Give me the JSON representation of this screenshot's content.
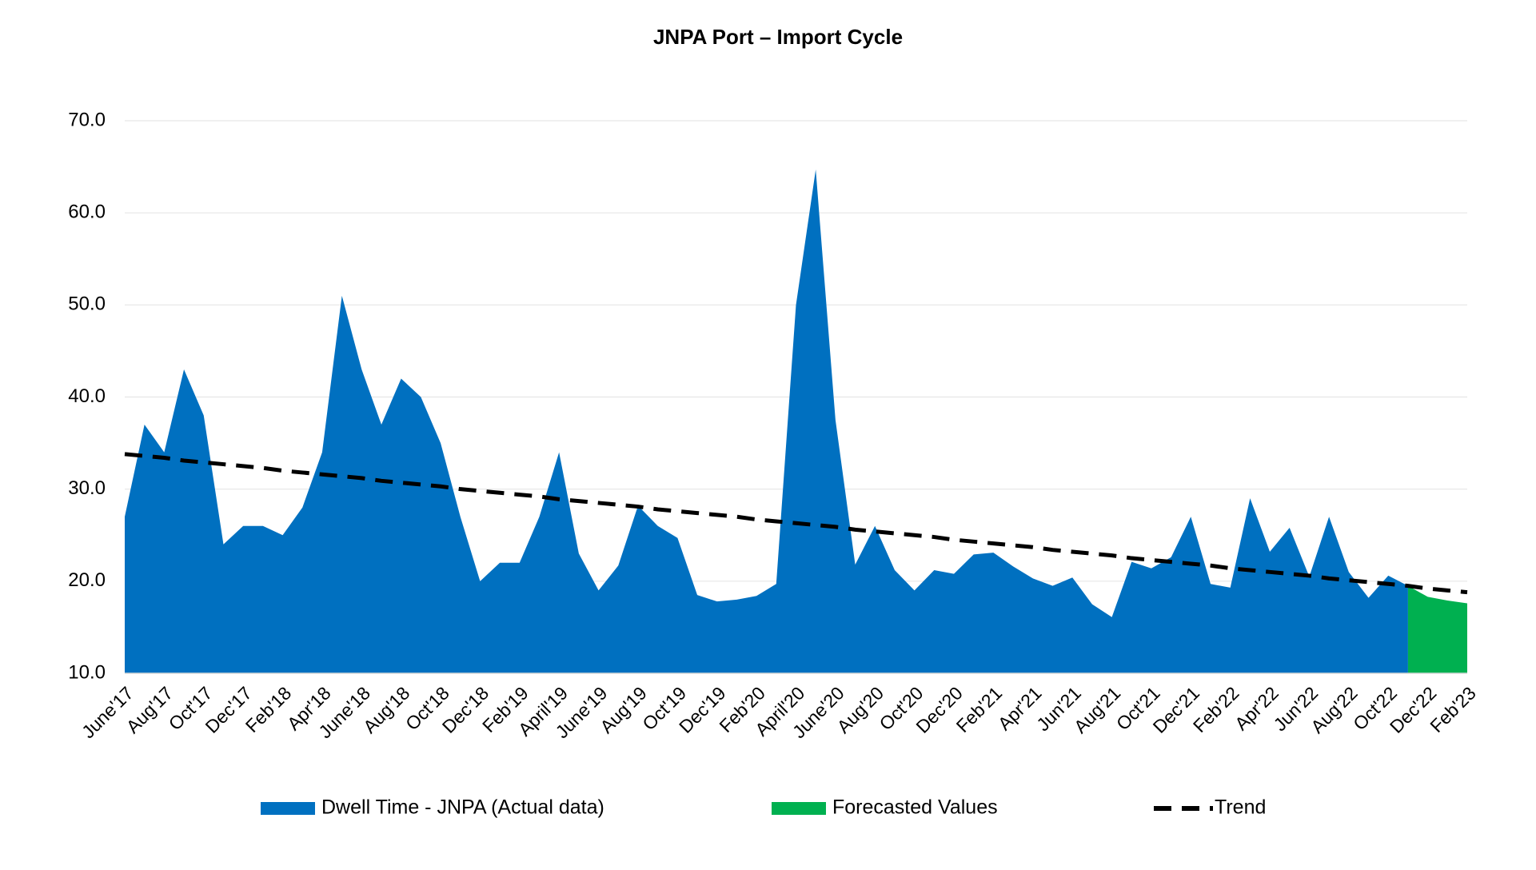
{
  "chart_data": {
    "type": "area",
    "title": "JNPA Port – Import Cycle",
    "categories": [
      "June'17",
      null,
      "Aug'17",
      null,
      "Oct'17",
      null,
      "Dec'17",
      null,
      "Feb'18",
      null,
      "Apr'18",
      null,
      "June'18",
      null,
      "Aug'18",
      null,
      "Oct'18",
      null,
      "Dec'18",
      null,
      "Feb'19",
      null,
      "April'19",
      null,
      "June'19",
      null,
      "Aug'19",
      null,
      "Oct'19",
      null,
      "Dec'19",
      null,
      "Feb'20",
      null,
      "April'20",
      null,
      "June'20",
      null,
      "Aug'20",
      null,
      "Oct'20",
      null,
      "Dec'20",
      null,
      "Feb'21",
      null,
      "Apr'21",
      null,
      "Jun'21",
      null,
      "Aug'21",
      null,
      "Oct'21",
      null,
      "Dec'21",
      null,
      "Feb'22",
      null,
      "Apr'22",
      null,
      "Jun'22",
      null,
      "Aug'22",
      null,
      "Oct'22",
      null,
      "Dec'22",
      null,
      "Feb'23"
    ],
    "series": [
      {
        "name": "Dwell Time - JNPA (Actual data)",
        "color": "#0070c0",
        "kind": "area",
        "values": [
          27,
          37,
          34,
          43,
          38,
          24,
          26,
          26,
          25,
          28,
          34,
          51,
          43,
          37,
          42,
          40,
          35,
          27,
          20,
          22,
          22,
          27,
          34,
          23,
          19,
          21.7,
          28.2,
          26,
          24.7,
          18.5,
          17.8,
          18,
          18.4,
          19.7,
          50,
          64.7,
          37.5,
          21.8,
          26,
          21.2,
          19,
          21.2,
          20.8,
          22.9,
          23.1,
          21.6,
          20.3,
          19.5,
          20.4,
          17.5,
          16.1,
          22.1,
          21.4,
          22.6,
          27,
          19.7,
          19.3,
          29,
          23.2,
          25.8,
          20.5,
          27,
          21,
          18.2,
          20.6,
          19.5,
          null,
          null,
          null
        ]
      },
      {
        "name": "Forecasted Values",
        "color": "#00b050",
        "kind": "area",
        "values": [
          null,
          null,
          null,
          null,
          null,
          null,
          null,
          null,
          null,
          null,
          null,
          null,
          null,
          null,
          null,
          null,
          null,
          null,
          null,
          null,
          null,
          null,
          null,
          null,
          null,
          null,
          null,
          null,
          null,
          null,
          null,
          null,
          null,
          null,
          null,
          null,
          null,
          null,
          null,
          null,
          null,
          null,
          null,
          null,
          null,
          null,
          null,
          null,
          null,
          null,
          null,
          null,
          null,
          null,
          null,
          null,
          null,
          null,
          null,
          null,
          null,
          null,
          null,
          null,
          null,
          19.5,
          18.3,
          17.9,
          17.6
        ]
      },
      {
        "name": "Trend",
        "color": "#000000",
        "kind": "dashed-line",
        "values": [
          33.8,
          33.6,
          33.4,
          33.1,
          32.9,
          32.7,
          32.5,
          32.3,
          32.0,
          31.8,
          31.6,
          31.4,
          31.2,
          30.9,
          30.7,
          30.5,
          30.3,
          30.0,
          29.8,
          29.6,
          29.4,
          29.2,
          28.9,
          28.7,
          28.5,
          28.3,
          28.1,
          27.8,
          27.6,
          27.4,
          27.2,
          27.0,
          26.7,
          26.5,
          26.3,
          26.1,
          25.9,
          25.6,
          25.4,
          25.2,
          25.0,
          24.8,
          24.5,
          24.3,
          24.1,
          23.9,
          23.7,
          23.4,
          23.2,
          23.0,
          22.8,
          22.5,
          22.3,
          22.1,
          21.9,
          21.7,
          21.4,
          21.2,
          21.0,
          20.8,
          20.6,
          20.3,
          20.1,
          19.9,
          19.7,
          19.5,
          19.2,
          19.0,
          18.8
        ]
      }
    ],
    "ylim": [
      10,
      70
    ],
    "yticks": [
      {
        "value": 10,
        "label": "10.0"
      },
      {
        "value": 20,
        "label": "20.0"
      },
      {
        "value": 30,
        "label": "30.0"
      },
      {
        "value": 40,
        "label": "40.0"
      },
      {
        "value": 50,
        "label": "50.0"
      },
      {
        "value": 60,
        "label": "60.0"
      },
      {
        "value": 70,
        "label": "70.0"
      }
    ],
    "grid": true,
    "legend": "bottom"
  }
}
